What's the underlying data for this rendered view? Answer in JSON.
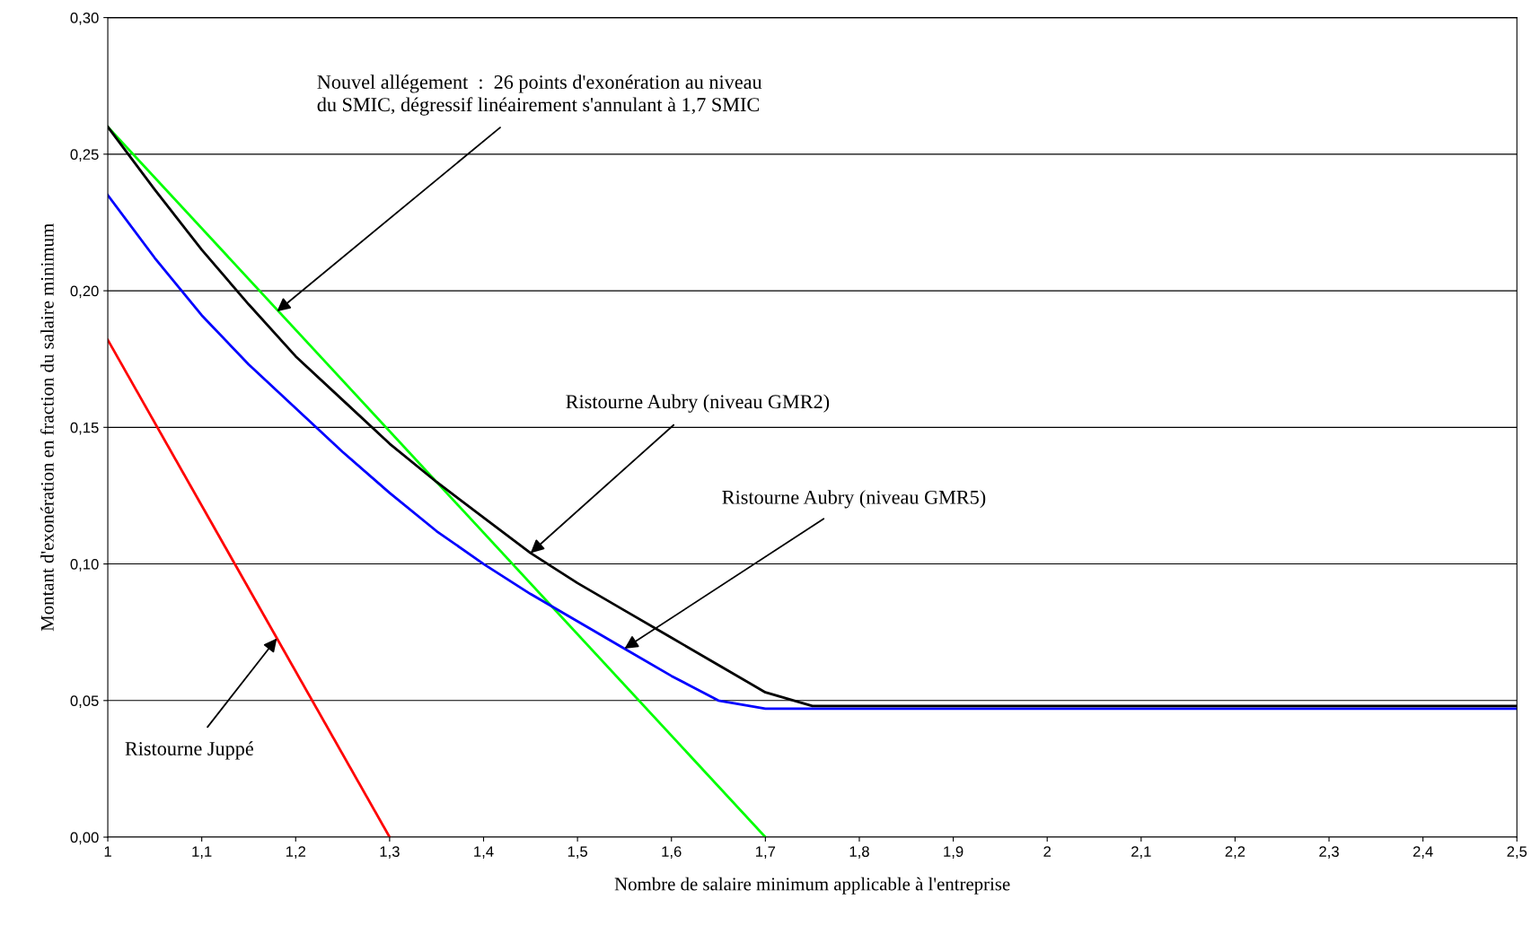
{
  "chart_data": {
    "type": "line",
    "xlabel": "Nombre de salaire minimum applicable à l'entreprise",
    "ylabel": "Montant d'exonération en fraction du salaire minimum",
    "xlim": [
      1,
      2.5
    ],
    "ylim": [
      0,
      0.3
    ],
    "grid": "y",
    "marker": "none",
    "line_style": "solid",
    "xticks": [
      1,
      {
        "value": 1.1,
        "label": "1,1"
      },
      {
        "value": 1.2,
        "label": "1,2"
      },
      {
        "value": 1.3,
        "label": "1,3"
      },
      {
        "value": 1.4,
        "label": "1,4"
      },
      {
        "value": 1.5,
        "label": "1,5"
      },
      {
        "value": 1.6,
        "label": "1,6"
      },
      {
        "value": 1.7,
        "label": "1,7"
      },
      {
        "value": 1.8,
        "label": "1,8"
      },
      {
        "value": 1.9,
        "label": "1,9"
      },
      2,
      {
        "value": 2.1,
        "label": "2,1"
      },
      {
        "value": 2.2,
        "label": "2,2"
      },
      {
        "value": 2.3,
        "label": "2,3"
      },
      {
        "value": 2.4,
        "label": "2,4"
      },
      {
        "value": 2.5,
        "label": "2,5"
      }
    ],
    "yticks": [
      {
        "value": 0,
        "label": "0,00"
      },
      {
        "value": 0.05,
        "label": "0,05"
      },
      {
        "value": 0.1,
        "label": "0,10"
      },
      {
        "value": 0.15,
        "label": "0,15"
      },
      {
        "value": 0.2,
        "label": "0,20"
      },
      {
        "value": 0.25,
        "label": "0,25"
      },
      {
        "value": 0.3,
        "label": "0,30"
      }
    ],
    "series": [
      {
        "color": "#ff0000",
        "x": [
          1,
          1.3
        ],
        "values": [
          0.182,
          0
        ]
      },
      {
        "color": "#00ff00",
        "x": [
          1,
          1.7
        ],
        "values": [
          0.26,
          0
        ]
      },
      {
        "color": "#0000ff",
        "x": [
          1,
          1.05,
          1.1,
          1.15,
          1.2,
          1.25,
          1.3,
          1.35,
          1.4,
          1.45,
          1.5,
          1.55,
          1.6,
          1.65,
          1.7,
          2.5
        ],
        "values": [
          0.235,
          0.212,
          0.191,
          0.173,
          0.157,
          0.141,
          0.126,
          0.112,
          0.1,
          0.089,
          0.079,
          0.069,
          0.059,
          0.05,
          0.047,
          0.047
        ]
      },
      {
        "color": "#000000",
        "x": [
          1,
          1.05,
          1.1,
          1.15,
          1.2,
          1.25,
          1.3,
          1.35,
          1.4,
          1.45,
          1.5,
          1.55,
          1.6,
          1.65,
          1.7,
          1.75,
          2.5
        ],
        "values": [
          0.26,
          0.237,
          0.215,
          0.195,
          0.176,
          0.16,
          0.144,
          0.13,
          0.117,
          0.104,
          0.093,
          0.083,
          0.073,
          0.063,
          0.053,
          0.048,
          0.048
        ]
      }
    ],
    "annotations": [
      {
        "text": "Nouvel allégement  :  26 points d'exonération au niveau\ndu SMIC, dégressif linéairement s'annulant à 1,7 SMIC",
        "x": 1.18,
        "y": 0.1924
      },
      {
        "text": "Ristourne Aubry (niveau GMR2)",
        "x": 1.45,
        "y": 0.104
      },
      {
        "text": "Ristourne Aubry (niveau GMR5)",
        "x": 1.55,
        "y": 0.069
      },
      {
        "text": "Ristourne Juppé",
        "x": 1.18,
        "y": 0.0728
      }
    ]
  }
}
